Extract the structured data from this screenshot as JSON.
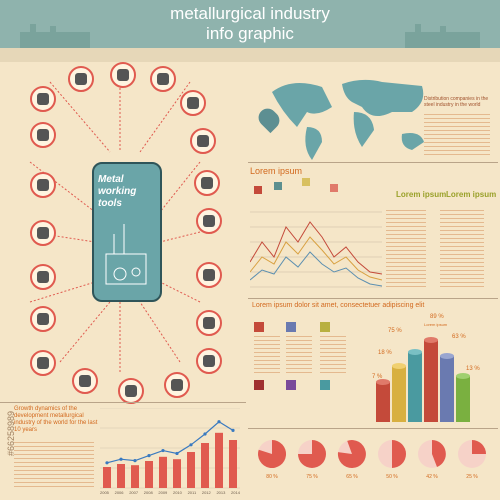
{
  "header": {
    "title_line1": "metallurgical industry",
    "title_line2": "info graphic"
  },
  "center_panel": {
    "label": "Metal working tools"
  },
  "map_panel": {
    "heading": "Distribution companies in the steel industry in the world"
  },
  "line_chart_panel": {
    "title": "Lorem ipsum",
    "col1": "Lorem ipsum",
    "col2": "Lorem ipsum"
  },
  "bar3d_panel": {
    "title": "Lorem ipsum dolor sit amet, consectetuer adipiscing elit",
    "percent_labels": [
      "75 %",
      "89 %",
      "63 %",
      "18 %",
      "7 %",
      "13 %"
    ],
    "value_label": "Lorem ipsum"
  },
  "growth_panel": {
    "caption": "Growth dynamics of the development metallurgical industry of the world for the last 10 years",
    "x_labels": [
      "2005",
      "2006",
      "2007",
      "2008",
      "2009",
      "2010",
      "2011",
      "2012",
      "2013",
      "2014"
    ]
  },
  "pies": {
    "labels": [
      "80 %",
      "75 %",
      "65 %",
      "50 %",
      "42 %",
      "25 %"
    ]
  },
  "watermark": {
    "id_text": "#66258989"
  },
  "chart_data": [
    {
      "type": "line",
      "x": [
        "2005",
        "2006",
        "2007",
        "2008",
        "2009",
        "2010",
        "2011",
        "2012",
        "2013",
        "2014"
      ],
      "series": [
        {
          "values": [
            35,
            40,
            38,
            45,
            52,
            48,
            60,
            75,
            92,
            80
          ]
        }
      ]
    }
  ],
  "colors": {
    "header": "#8fb3ad",
    "accent_red": "#e05a4f",
    "accent_orange": "#d2691e",
    "teal": "#6aa5a8",
    "background": "#f5e6c8"
  }
}
